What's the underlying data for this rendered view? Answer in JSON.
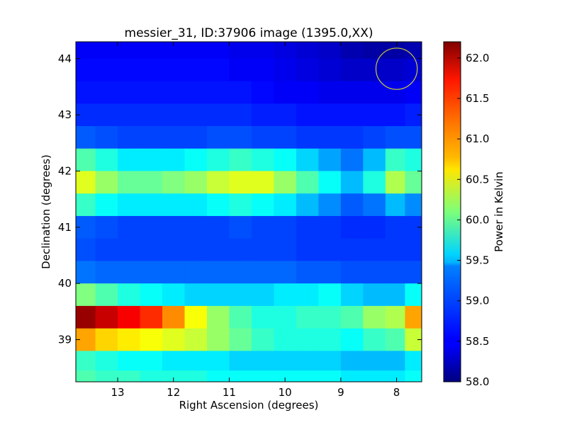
{
  "chart_data": {
    "type": "heatmap",
    "title": "messier_31, ID:37906 image (1395.0,XX)",
    "xlabel": "Right Ascension (degrees)",
    "ylabel": "Declination (degrees)",
    "colorbar_label": "Power in Kelvin",
    "xlim": [
      13.75,
      7.55
    ],
    "ylim": [
      38.25,
      44.3
    ],
    "x_ticks": [
      13,
      12,
      11,
      10,
      9,
      8
    ],
    "y_ticks": [
      39,
      40,
      41,
      42,
      43,
      44
    ],
    "colorbar_range": [
      58.0,
      62.2
    ],
    "colorbar_ticks": [
      "58.0",
      "58.5",
      "59.0",
      "59.5",
      "60.0",
      "60.5",
      "61.0",
      "61.5",
      "62.0"
    ],
    "colormap": "jet",
    "grid": false,
    "beam_marker": {
      "ra": 8.0,
      "dec": 43.82,
      "radius_deg": 0.37,
      "color": "#cccc33"
    },
    "x": [
      13.6,
      13.2,
      12.8,
      12.4,
      12.0,
      11.6,
      11.2,
      10.8,
      10.4,
      10.0,
      9.6,
      9.2,
      8.8,
      8.4,
      8.0,
      7.7
    ],
    "y": [
      44.2,
      43.8,
      43.4,
      43.0,
      42.6,
      42.2,
      41.8,
      41.4,
      41.0,
      40.6,
      40.2,
      39.8,
      39.4,
      39.0,
      38.6,
      38.3
    ],
    "z": [
      [
        58.5,
        58.5,
        58.5,
        58.5,
        58.5,
        58.5,
        58.5,
        58.45,
        58.45,
        58.4,
        58.35,
        58.3,
        58.2,
        58.15,
        58.15,
        58.2
      ],
      [
        58.55,
        58.55,
        58.55,
        58.55,
        58.55,
        58.55,
        58.55,
        58.5,
        58.5,
        58.45,
        58.4,
        58.35,
        58.3,
        58.3,
        58.3,
        58.35
      ],
      [
        58.6,
        58.6,
        58.6,
        58.6,
        58.6,
        58.6,
        58.6,
        58.6,
        58.55,
        58.5,
        58.5,
        58.45,
        58.45,
        58.45,
        58.45,
        58.5
      ],
      [
        58.7,
        58.7,
        58.7,
        58.7,
        58.7,
        58.7,
        58.7,
        58.7,
        58.65,
        58.65,
        58.6,
        58.6,
        58.6,
        58.6,
        58.6,
        58.65
      ],
      [
        58.9,
        58.85,
        58.8,
        58.8,
        58.8,
        58.8,
        58.85,
        58.85,
        58.8,
        58.8,
        58.75,
        58.75,
        58.75,
        58.8,
        58.85,
        58.85
      ],
      [
        59.9,
        59.7,
        59.5,
        59.5,
        59.5,
        59.6,
        59.7,
        59.8,
        59.7,
        59.6,
        59.4,
        59.2,
        59.0,
        59.3,
        59.8,
        59.7
      ],
      [
        60.5,
        60.2,
        60.0,
        60.0,
        60.1,
        60.2,
        60.4,
        60.5,
        60.5,
        60.2,
        59.9,
        59.6,
        59.3,
        59.7,
        60.3,
        60.0
      ],
      [
        59.8,
        59.6,
        59.5,
        59.5,
        59.5,
        59.5,
        59.6,
        59.7,
        59.6,
        59.5,
        59.3,
        59.1,
        58.9,
        59.0,
        59.3,
        59.1
      ],
      [
        58.9,
        58.85,
        58.8,
        58.8,
        58.8,
        58.8,
        58.8,
        58.85,
        58.8,
        58.8,
        58.75,
        58.75,
        58.7,
        58.7,
        58.75,
        58.75
      ],
      [
        58.85,
        58.8,
        58.8,
        58.8,
        58.8,
        58.8,
        58.8,
        58.8,
        58.8,
        58.8,
        58.75,
        58.75,
        58.75,
        58.75,
        58.75,
        58.75
      ],
      [
        59.0,
        58.95,
        58.95,
        58.95,
        58.95,
        58.95,
        58.95,
        58.95,
        58.95,
        58.95,
        58.9,
        58.9,
        58.85,
        58.85,
        58.85,
        58.85
      ],
      [
        60.1,
        59.9,
        59.7,
        59.6,
        59.5,
        59.4,
        59.4,
        59.4,
        59.4,
        59.5,
        59.5,
        59.6,
        59.4,
        59.3,
        59.3,
        59.6
      ],
      [
        62.1,
        61.9,
        61.7,
        61.5,
        61.1,
        60.6,
        60.2,
        59.9,
        59.7,
        59.7,
        59.8,
        59.8,
        59.9,
        60.2,
        60.3,
        61.0
      ],
      [
        61.0,
        60.8,
        60.7,
        60.6,
        60.5,
        60.4,
        60.2,
        60.0,
        59.8,
        59.7,
        59.7,
        59.7,
        59.6,
        59.8,
        59.9,
        60.4
      ],
      [
        59.8,
        59.7,
        59.6,
        59.6,
        59.5,
        59.5,
        59.5,
        59.4,
        59.4,
        59.4,
        59.4,
        59.4,
        59.3,
        59.3,
        59.3,
        59.5
      ],
      [
        59.9,
        59.8,
        59.8,
        59.7,
        59.7,
        59.7,
        59.6,
        59.6,
        59.6,
        59.6,
        59.6,
        59.6,
        59.5,
        59.5,
        59.5,
        59.6
      ]
    ]
  }
}
